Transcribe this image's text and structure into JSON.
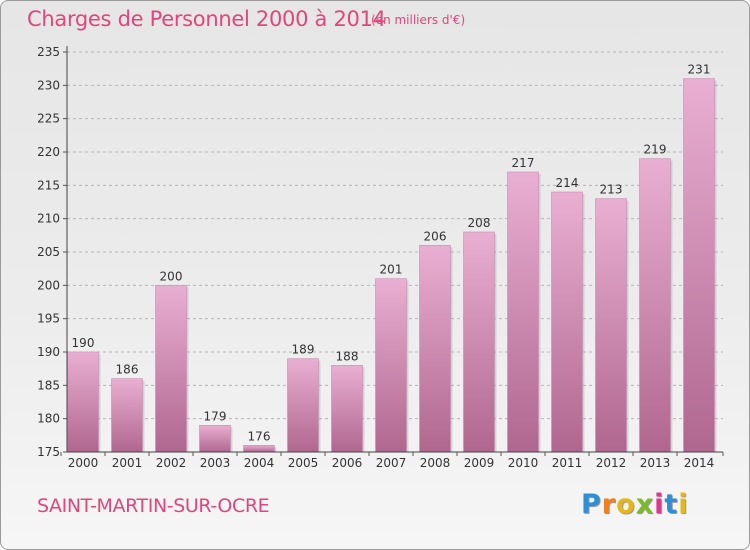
{
  "title": "Charges de Personnel 2000 à 2014",
  "subtitle": "(en milliers d'€)",
  "commune": "SAINT-MARTIN-SUR-OCRE",
  "logo": {
    "letters": [
      "P",
      "r",
      "o",
      "x",
      "i",
      "t",
      "i"
    ],
    "colors": [
      "#2f8ed8",
      "#f07f1c",
      "#e5b81a",
      "#7cba2a",
      "#d93a8c",
      "#2f8ed8",
      "#e5b81a"
    ]
  },
  "colors": {
    "bar_top": "#e9afd2",
    "bar_bottom": "#b0678f",
    "text_accent": "#e0457b",
    "grid": "#b5b5b5"
  },
  "chart_data": {
    "type": "bar",
    "title": "Charges de Personnel 2000 à 2014",
    "subtitle": "(en milliers d'€)",
    "categories": [
      "2000",
      "2001",
      "2002",
      "2003",
      "2004",
      "2005",
      "2006",
      "2007",
      "2008",
      "2009",
      "2010",
      "2011",
      "2012",
      "2013",
      "2014"
    ],
    "values": [
      190,
      186,
      200,
      179,
      176,
      189,
      188,
      201,
      206,
      208,
      217,
      214,
      213,
      219,
      231
    ],
    "ylim": [
      175,
      235
    ],
    "yticks": [
      175,
      180,
      185,
      190,
      195,
      200,
      205,
      210,
      215,
      220,
      225,
      230,
      235
    ],
    "grid": "horizontal dashed",
    "data_labels": true
  }
}
